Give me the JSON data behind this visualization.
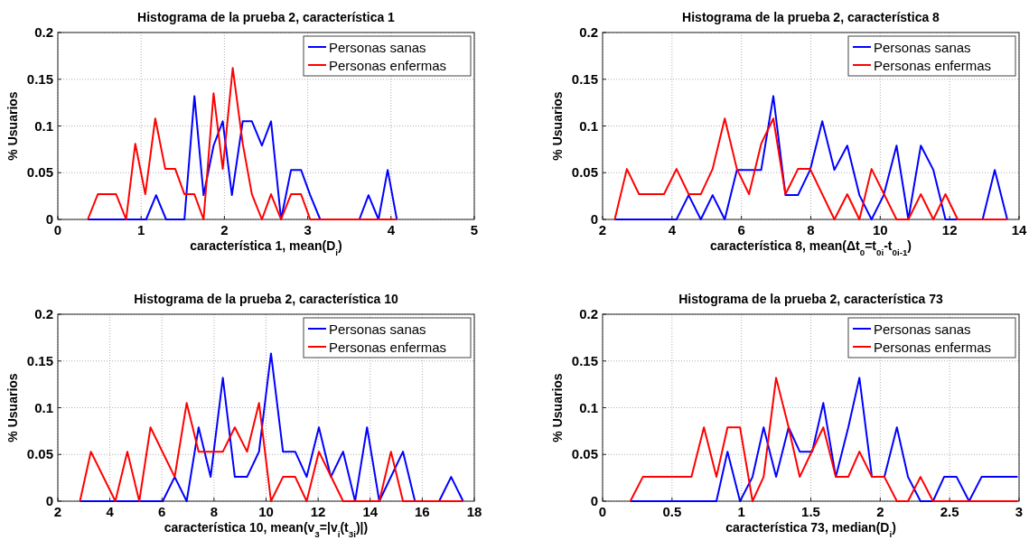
{
  "chart_data": [
    {
      "type": "line",
      "title": "Histograma de la prueba 2, característica 1",
      "xlabel": "característica 1, mean(D$_{i}$)",
      "ylabel": "% Usuarios",
      "xlim": [
        0,
        5
      ],
      "xticks": [
        0,
        1,
        2,
        3,
        4,
        5
      ],
      "ylim": [
        0,
        0.2
      ],
      "yticks": [
        0,
        0.05,
        0.1,
        0.15,
        0.2
      ],
      "grid": true,
      "legend": "top right",
      "series": [
        {
          "name": "Personas sanas",
          "color": "#0000ff",
          "x": [
            0.36,
            1.06,
            1.18,
            1.3,
            1.52,
            1.64,
            1.75,
            1.87,
            1.98,
            2.09,
            2.22,
            2.33,
            2.45,
            2.56,
            2.68,
            2.8,
            2.92,
            3.03,
            3.15,
            3.62,
            3.73,
            3.85,
            3.96,
            4.07
          ],
          "values": [
            0,
            0,
            0.026,
            0,
            0,
            0.132,
            0.026,
            0.079,
            0.105,
            0.026,
            0.105,
            0.105,
            0.079,
            0.105,
            0,
            0.053,
            0.053,
            0.026,
            0,
            0,
            0.026,
            0,
            0.053,
            0
          ]
        },
        {
          "name": "Personas enfermas",
          "color": "#ff0000",
          "x": [
            0.36,
            0.48,
            0.7,
            0.82,
            0.93,
            1.05,
            1.17,
            1.29,
            1.41,
            1.52,
            1.64,
            1.75,
            1.87,
            1.98,
            2.1,
            2.22,
            2.33,
            2.45,
            2.56,
            2.68,
            2.8,
            2.92,
            3.03,
            4.07
          ],
          "values": [
            0,
            0.027,
            0.027,
            0,
            0.081,
            0.027,
            0.108,
            0.054,
            0.054,
            0.027,
            0.027,
            0,
            0.135,
            0.054,
            0.162,
            0.081,
            0.027,
            0,
            0.027,
            0,
            0.027,
            0.027,
            0,
            0
          ]
        }
      ]
    },
    {
      "type": "line",
      "title": "Histograma de la prueba 2, característica 8",
      "xlabel": "característica 8, mean(Δt$_{0}$=t$_{0i}$-t$_{0i-1}$)",
      "ylabel": "% Usuarios",
      "xlim": [
        2,
        14
      ],
      "xticks": [
        2,
        4,
        6,
        8,
        10,
        12,
        14
      ],
      "ylim": [
        0,
        0.2
      ],
      "yticks": [
        0,
        0.05,
        0.1,
        0.15,
        0.2
      ],
      "grid": true,
      "legend": "top right",
      "series": [
        {
          "name": "Personas sanas",
          "color": "#0000ff",
          "x": [
            2.35,
            4.13,
            4.48,
            4.83,
            5.17,
            5.52,
            5.87,
            6.57,
            6.92,
            7.27,
            7.63,
            7.98,
            8.33,
            8.68,
            9.05,
            9.4,
            9.75,
            10.1,
            10.47,
            10.81,
            11.17,
            11.53,
            11.88,
            12.95,
            13.3,
            13.66
          ],
          "values": [
            0,
            0,
            0.026,
            0,
            0.026,
            0,
            0.053,
            0.053,
            0.132,
            0.026,
            0.026,
            0.053,
            0.105,
            0.053,
            0.079,
            0.026,
            0,
            0.026,
            0.079,
            0,
            0.079,
            0.053,
            0,
            0,
            0.053,
            0
          ]
        },
        {
          "name": "Personas enfermas",
          "color": "#ff0000",
          "x": [
            2.35,
            2.7,
            3.05,
            3.77,
            4.13,
            4.48,
            4.83,
            5.17,
            5.52,
            5.87,
            6.22,
            6.57,
            6.92,
            7.27,
            7.63,
            7.98,
            8.68,
            9.05,
            9.4,
            9.75,
            10.47,
            10.81,
            11.17,
            11.53,
            11.88,
            12.23,
            13.66
          ],
          "values": [
            0,
            0.054,
            0.027,
            0.027,
            0.054,
            0.027,
            0.027,
            0.054,
            0.108,
            0.054,
            0.027,
            0.081,
            0.108,
            0.027,
            0.054,
            0.054,
            0,
            0.027,
            0,
            0.054,
            0,
            0,
            0.027,
            0,
            0.027,
            0,
            0
          ]
        }
      ]
    },
    {
      "type": "line",
      "title": "Histograma de la prueba 2, característica 10",
      "xlabel": "característica 10, mean(v$_{3}$=|v$_{i}$(t$_{3i}$)|)",
      "ylabel": "% Usuarios",
      "xlim": [
        2,
        18
      ],
      "xticks": [
        2,
        4,
        6,
        8,
        10,
        12,
        14,
        16,
        18
      ],
      "ylim": [
        0,
        0.2
      ],
      "yticks": [
        0,
        0.05,
        0.1,
        0.15,
        0.2
      ],
      "grid": true,
      "legend": "top right",
      "series": [
        {
          "name": "Personas sanas",
          "color": "#0000ff",
          "x": [
            2.85,
            6.03,
            6.49,
            6.95,
            7.41,
            7.87,
            8.34,
            8.8,
            9.27,
            9.73,
            10.19,
            10.65,
            11.12,
            11.56,
            12.03,
            12.49,
            12.96,
            13.42,
            13.88,
            14.35,
            15.26,
            15.72,
            16.65,
            17.11,
            17.57
          ],
          "values": [
            0,
            0,
            0.026,
            0,
            0.079,
            0.026,
            0.132,
            0.026,
            0.026,
            0.053,
            0.158,
            0.053,
            0.053,
            0.026,
            0.079,
            0.026,
            0.053,
            0,
            0.079,
            0,
            0.053,
            0,
            0,
            0.026,
            0
          ]
        },
        {
          "name": "Personas enfermas",
          "color": "#ff0000",
          "x": [
            2.85,
            3.27,
            4.21,
            4.67,
            5.13,
            5.56,
            6.49,
            6.95,
            7.41,
            8.34,
            8.8,
            9.27,
            9.73,
            10.19,
            10.65,
            11.12,
            11.56,
            12.03,
            12.96,
            14.35,
            14.8,
            15.26,
            17.57
          ],
          "values": [
            0,
            0.053,
            0,
            0.053,
            0,
            0.079,
            0.026,
            0.105,
            0.053,
            0.053,
            0.079,
            0.053,
            0.105,
            0,
            0.026,
            0.026,
            0,
            0.053,
            0,
            0,
            0.053,
            0,
            0
          ]
        }
      ]
    },
    {
      "type": "line",
      "title": "Histograma de la prueba 2, característica 73",
      "xlabel": "característica 73, median(D$_{i}$)",
      "ylabel": "% Usuarios",
      "xlim": [
        0,
        3
      ],
      "xticks": [
        0,
        0.5,
        1,
        1.5,
        2,
        2.5,
        3
      ],
      "ylim": [
        0,
        0.2
      ],
      "yticks": [
        0,
        0.05,
        0.1,
        0.15,
        0.2
      ],
      "grid": true,
      "legend": "top right",
      "series": [
        {
          "name": "Personas sanas",
          "color": "#0000ff",
          "x": [
            0.2,
            0.82,
            0.9,
            0.99,
            1.08,
            1.16,
            1.25,
            1.34,
            1.42,
            1.51,
            1.59,
            1.68,
            1.77,
            1.85,
            1.94,
            2.03,
            2.12,
            2.2,
            2.29,
            2.38,
            2.46,
            2.55,
            2.64,
            2.73,
            2.99
          ],
          "values": [
            0,
            0,
            0.053,
            0,
            0.026,
            0.079,
            0.026,
            0.079,
            0.053,
            0.053,
            0.105,
            0.026,
            0.079,
            0.132,
            0.026,
            0.026,
            0.079,
            0.026,
            0,
            0,
            0.026,
            0.026,
            0,
            0.026,
            0.026
          ]
        },
        {
          "name": "Personas enfermas",
          "color": "#ff0000",
          "x": [
            0.2,
            0.29,
            0.64,
            0.73,
            0.82,
            0.9,
            0.99,
            1.08,
            1.16,
            1.25,
            1.34,
            1.42,
            1.59,
            1.68,
            1.77,
            1.85,
            1.94,
            2.03,
            2.12,
            2.2,
            2.29,
            2.38,
            2.99
          ],
          "values": [
            0,
            0.026,
            0.026,
            0.079,
            0.026,
            0.079,
            0.079,
            0,
            0.026,
            0.132,
            0.079,
            0.026,
            0.079,
            0.026,
            0.026,
            0.053,
            0.026,
            0.026,
            0,
            0,
            0.026,
            0,
            0
          ]
        }
      ]
    }
  ]
}
